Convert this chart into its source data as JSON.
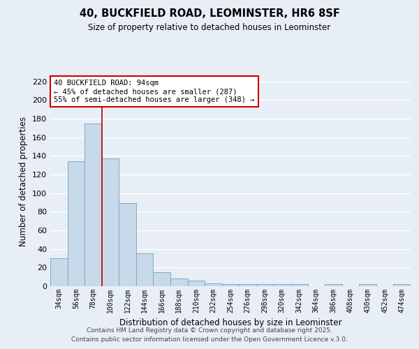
{
  "title1": "40, BUCKFIELD ROAD, LEOMINSTER, HR6 8SF",
  "title2": "Size of property relative to detached houses in Leominster",
  "xlabel": "Distribution of detached houses by size in Leominster",
  "ylabel": "Number of detached properties",
  "bar_values": [
    30,
    134,
    175,
    137,
    89,
    35,
    15,
    8,
    6,
    3,
    2,
    2,
    2,
    2,
    2,
    0,
    2,
    0,
    2,
    0,
    2
  ],
  "bin_labels": [
    "34sqm",
    "56sqm",
    "78sqm",
    "100sqm",
    "122sqm",
    "144sqm",
    "166sqm",
    "188sqm",
    "210sqm",
    "232sqm",
    "254sqm",
    "276sqm",
    "298sqm",
    "320sqm",
    "342sqm",
    "364sqm",
    "386sqm",
    "408sqm",
    "430sqm",
    "452sqm",
    "474sqm"
  ],
  "bar_color": "#c8d9ea",
  "bar_edge_color": "#7aaac8",
  "bg_color": "#e8eef6",
  "grid_color": "#ffffff",
  "vline_x_idx": 2.5,
  "vline_color": "#bb0000",
  "annotation_title": "40 BUCKFIELD ROAD: 94sqm",
  "annotation_line2": "← 45% of detached houses are smaller (287)",
  "annotation_line3": "55% of semi-detached houses are larger (348) →",
  "annotation_box_color": "#ffffff",
  "annotation_border_color": "#cc0000",
  "ylim": [
    0,
    225
  ],
  "yticks": [
    0,
    20,
    40,
    60,
    80,
    100,
    120,
    140,
    160,
    180,
    200,
    220
  ],
  "footer1": "Contains HM Land Registry data © Crown copyright and database right 2025.",
  "footer2": "Contains public sector information licensed under the Open Government Licence v.3.0."
}
